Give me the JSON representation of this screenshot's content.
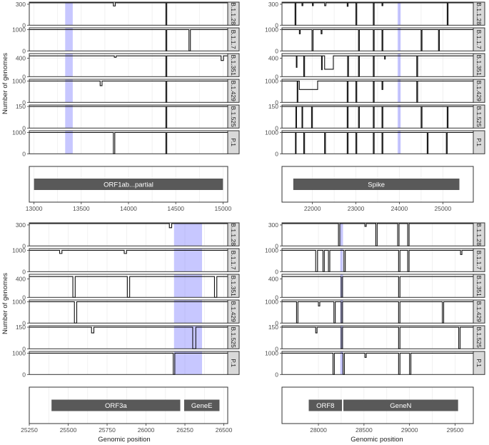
{
  "figure": {
    "y_axis_label": "Number of genomes",
    "x_axis_label": "Genomic position"
  },
  "chart_data": [
    {
      "type": "line",
      "panel": "top-left",
      "strips": [
        "B.1.1.28",
        "B.1.1.7",
        "B.1.351",
        "B.1.429",
        "B.1.525",
        "P.1"
      ],
      "xlim": [
        12950,
        15050
      ],
      "xticks": [
        13000,
        13500,
        14000,
        14500,
        15000
      ],
      "highlight": [
        13330,
        13410
      ],
      "series": [
        {
          "yticks": [
            0,
            300
          ],
          "ymax": 330,
          "base": 320,
          "dips": [
            {
              "x": 13840,
              "w": 20,
              "y": 275
            },
            {
              "x": 14395,
              "w": 10,
              "y": 0
            }
          ]
        },
        {
          "yticks": [
            0,
            1000
          ],
          "ymax": 1080,
          "base": 1000,
          "dips": [
            {
              "x": 14395,
              "w": 10,
              "y": 0
            },
            {
              "x": 14640,
              "w": 15,
              "y": 0
            }
          ]
        },
        {
          "yticks": [
            0,
            400
          ],
          "ymax": 500,
          "base": 450,
          "dips": [
            {
              "x": 13850,
              "w": 20,
              "y": 420
            },
            {
              "x": 14395,
              "w": 10,
              "y": 0
            },
            {
              "x": 14980,
              "w": 25,
              "y": 350
            }
          ]
        },
        {
          "yticks": [
            0,
            1000
          ],
          "ymax": 1080,
          "base": 1000,
          "dips": [
            {
              "x": 13700,
              "w": 20,
              "y": 780
            },
            {
              "x": 14395,
              "w": 10,
              "y": 0
            }
          ]
        },
        {
          "yticks": [
            0,
            150
          ],
          "ymax": 160,
          "base": 150,
          "dips": [
            {
              "x": 14395,
              "w": 10,
              "y": 0
            }
          ]
        },
        {
          "yticks": [
            0,
            1000
          ],
          "ymax": 1080,
          "base": 1000,
          "dips": [
            {
              "x": 13840,
              "w": 15,
              "y": 0
            },
            {
              "x": 14395,
              "w": 10,
              "y": 0
            }
          ]
        }
      ],
      "genes": [
        {
          "name": "ORF1ab...partial",
          "start": 13000,
          "end": 15000
        }
      ]
    },
    {
      "type": "line",
      "panel": "top-right",
      "strips": [
        "B.1.1.28",
        "B.1.1.7",
        "B.1.351",
        "B.1.429",
        "B.1.525",
        "P.1"
      ],
      "xlim": [
        21300,
        25700
      ],
      "xticks": [
        22000,
        23000,
        24000,
        25000
      ],
      "highlight": [
        23960,
        24030
      ],
      "series": [
        {
          "yticks": [
            0,
            300
          ],
          "ymax": 330,
          "base": 320,
          "dips": [
            {
              "x": 21600,
              "w": 20,
              "y": 0
            },
            {
              "x": 21760,
              "w": 20,
              "y": 280
            },
            {
              "x": 22000,
              "w": 20,
              "y": 280
            },
            {
              "x": 22280,
              "w": 30,
              "y": 280
            },
            {
              "x": 22800,
              "w": 20,
              "y": 270
            },
            {
              "x": 23000,
              "w": 20,
              "y": 0
            },
            {
              "x": 23400,
              "w": 20,
              "y": 0
            },
            {
              "x": 23600,
              "w": 20,
              "y": 280
            },
            {
              "x": 25100,
              "w": 20,
              "y": 0
            }
          ]
        },
        {
          "yticks": [
            0,
            1000
          ],
          "ymax": 1080,
          "base": 1000,
          "dips": [
            {
              "x": 21700,
              "w": 20,
              "y": 800
            },
            {
              "x": 21990,
              "w": 25,
              "y": 0
            },
            {
              "x": 22200,
              "w": 20,
              "y": 800
            },
            {
              "x": 23060,
              "w": 20,
              "y": 0
            },
            {
              "x": 23400,
              "w": 20,
              "y": 0
            },
            {
              "x": 23600,
              "w": 20,
              "y": 0
            },
            {
              "x": 24500,
              "w": 20,
              "y": 0
            },
            {
              "x": 24900,
              "w": 20,
              "y": 0
            }
          ]
        },
        {
          "yticks": [
            0,
            400
          ],
          "ymax": 500,
          "base": 450,
          "dips": [
            {
              "x": 21630,
              "w": 15,
              "y": 200
            },
            {
              "x": 21800,
              "w": 20,
              "y": 0
            },
            {
              "x": 22210,
              "w": 15,
              "y": 150
            },
            {
              "x": 22281,
              "w": 200,
              "y": 160
            },
            {
              "x": 22810,
              "w": 20,
              "y": 0
            },
            {
              "x": 23060,
              "w": 20,
              "y": 0
            },
            {
              "x": 23400,
              "w": 20,
              "y": 0
            },
            {
              "x": 23660,
              "w": 15,
              "y": 380
            },
            {
              "x": 24400,
              "w": 20,
              "y": 0
            }
          ]
        },
        {
          "yticks": [
            0,
            1000
          ],
          "ymax": 1080,
          "base": 1000,
          "dips": [
            {
              "x": 21650,
              "w": 15,
              "y": 0
            },
            {
              "x": 21700,
              "w": 420,
              "y": 600
            },
            {
              "x": 22800,
              "w": 20,
              "y": 0
            },
            {
              "x": 23000,
              "w": 20,
              "y": 0
            },
            {
              "x": 23400,
              "w": 20,
              "y": 0
            },
            {
              "x": 23600,
              "w": 20,
              "y": 600
            },
            {
              "x": 24400,
              "w": 20,
              "y": 0
            }
          ]
        },
        {
          "yticks": [
            0,
            150
          ],
          "ymax": 160,
          "base": 150,
          "dips": [
            {
              "x": 21620,
              "w": 15,
              "y": 0
            },
            {
              "x": 21760,
              "w": 15,
              "y": 0
            },
            {
              "x": 21980,
              "w": 20,
              "y": 0
            },
            {
              "x": 22800,
              "w": 20,
              "y": 0
            },
            {
              "x": 23060,
              "w": 20,
              "y": 0
            },
            {
              "x": 23400,
              "w": 20,
              "y": 0
            },
            {
              "x": 23600,
              "w": 20,
              "y": 0
            },
            {
              "x": 24500,
              "w": 20,
              "y": 0
            },
            {
              "x": 25100,
              "w": 20,
              "y": 0
            }
          ]
        },
        {
          "yticks": [
            0,
            1000
          ],
          "ymax": 1080,
          "base": 1000,
          "dips": [
            {
              "x": 21610,
              "w": 15,
              "y": 0
            },
            {
              "x": 21800,
              "w": 20,
              "y": 0
            },
            {
              "x": 22280,
              "w": 20,
              "y": 0
            },
            {
              "x": 22800,
              "w": 20,
              "y": 0
            },
            {
              "x": 23000,
              "w": 20,
              "y": 0
            },
            {
              "x": 23400,
              "w": 20,
              "y": 0
            },
            {
              "x": 23600,
              "w": 20,
              "y": 0
            },
            {
              "x": 24640,
              "w": 20,
              "y": 0
            },
            {
              "x": 25080,
              "w": 20,
              "y": 0
            }
          ]
        }
      ],
      "genes": [
        {
          "name": "Spike",
          "start": 21560,
          "end": 25380
        }
      ]
    },
    {
      "type": "line",
      "panel": "bottom-left",
      "strips": [
        "B.1.1.28",
        "B.1.1.7",
        "B.1.351",
        "B.1.429",
        "B.1.525",
        "P.1"
      ],
      "xlim": [
        25250,
        26525
      ],
      "xticks": [
        25250,
        25500,
        25750,
        26000,
        26250,
        26500
      ],
      "highlight": [
        26180,
        26360
      ],
      "series": [
        {
          "yticks": [
            0,
            300
          ],
          "ymax": 330,
          "base": 320,
          "dips": [
            {
              "x": 26150,
              "w": 15,
              "y": 260
            }
          ]
        },
        {
          "yticks": [
            0,
            1000
          ],
          "ymax": 1080,
          "base": 1000,
          "dips": [
            {
              "x": 25445,
              "w": 15,
              "y": 850
            },
            {
              "x": 25860,
              "w": 15,
              "y": 850
            }
          ]
        },
        {
          "yticks": [
            0,
            400
          ],
          "ymax": 500,
          "base": 450,
          "dips": [
            {
              "x": 25530,
              "w": 15,
              "y": 0
            },
            {
              "x": 25880,
              "w": 15,
              "y": 0
            },
            {
              "x": 26440,
              "w": 15,
              "y": 0
            }
          ]
        },
        {
          "yticks": [
            0,
            1000
          ],
          "ymax": 1080,
          "base": 1000,
          "dips": [
            {
              "x": 25540,
              "w": 15,
              "y": 0
            }
          ]
        },
        {
          "yticks": [
            0,
            150
          ],
          "ymax": 160,
          "base": 150,
          "dips": [
            {
              "x": 25650,
              "w": 15,
              "y": 110
            },
            {
              "x": 26300,
              "w": 20,
              "y": 0
            }
          ]
        },
        {
          "yticks": [
            0,
            1000
          ],
          "ymax": 1080,
          "base": 1000,
          "dips": [
            {
              "x": 26175,
              "w": 10,
              "y": 0
            }
          ]
        }
      ],
      "genes": [
        {
          "name": "ORF3a",
          "start": 25393,
          "end": 26220
        },
        {
          "name": "GeneE",
          "start": 26245,
          "end": 26472
        }
      ]
    },
    {
      "type": "line",
      "panel": "bottom-right",
      "strips": [
        "B.1.1.28",
        "B.1.1.7",
        "B.1.351",
        "B.1.429",
        "B.1.525",
        "P.1"
      ],
      "xlim": [
        27600,
        29700
      ],
      "xticks": [
        28000,
        28500,
        29000,
        29500
      ],
      "highlight": [
        28240,
        28270
      ],
      "series": [
        {
          "yticks": [
            0,
            300
          ],
          "ymax": 330,
          "base": 320,
          "dips": [
            {
              "x": 28220,
              "w": 15,
              "y": 0
            },
            {
              "x": 28510,
              "w": 15,
              "y": 280
            },
            {
              "x": 28630,
              "w": 15,
              "y": 0
            },
            {
              "x": 28870,
              "w": 15,
              "y": 0
            },
            {
              "x": 28980,
              "w": 15,
              "y": 0
            }
          ]
        },
        {
          "yticks": [
            0,
            1000
          ],
          "ymax": 1080,
          "base": 1000,
          "dips": [
            {
              "x": 27970,
              "w": 20,
              "y": 0
            },
            {
              "x": 28050,
              "w": 15,
              "y": 0
            },
            {
              "x": 28110,
              "w": 15,
              "y": 0
            },
            {
              "x": 28280,
              "w": 15,
              "y": 0
            },
            {
              "x": 28880,
              "w": 15,
              "y": 0
            },
            {
              "x": 28980,
              "w": 15,
              "y": 0
            },
            {
              "x": 29560,
              "w": 15,
              "y": 800
            }
          ]
        },
        {
          "yticks": [
            0,
            400
          ],
          "ymax": 500,
          "base": 450,
          "dips": [
            {
              "x": 28250,
              "w": 15,
              "y": 0
            },
            {
              "x": 28880,
              "w": 15,
              "y": 0
            }
          ]
        },
        {
          "yticks": [
            0,
            1000
          ],
          "ymax": 1080,
          "base": 1000,
          "dips": [
            {
              "x": 27760,
              "w": 15,
              "y": 0
            },
            {
              "x": 28000,
              "w": 15,
              "y": 800
            },
            {
              "x": 28170,
              "w": 15,
              "y": 0
            },
            {
              "x": 28250,
              "w": 15,
              "y": 0
            },
            {
              "x": 28880,
              "w": 15,
              "y": 0
            },
            {
              "x": 29360,
              "w": 15,
              "y": 0
            }
          ]
        },
        {
          "yticks": [
            0,
            150
          ],
          "ymax": 160,
          "base": 150,
          "dips": [
            {
              "x": 27970,
              "w": 15,
              "y": 110
            },
            {
              "x": 28250,
              "w": 15,
              "y": 0
            },
            {
              "x": 28880,
              "w": 15,
              "y": 0
            },
            {
              "x": 29540,
              "w": 15,
              "y": 0
            }
          ]
        },
        {
          "yticks": [
            0,
            1000
          ],
          "ymax": 1080,
          "base": 1000,
          "dips": [
            {
              "x": 28160,
              "w": 15,
              "y": 0
            },
            {
              "x": 28270,
              "w": 15,
              "y": 0
            },
            {
              "x": 28510,
              "w": 15,
              "y": 800
            },
            {
              "x": 28880,
              "w": 15,
              "y": 0
            },
            {
              "x": 29000,
              "w": 15,
              "y": 0
            }
          ]
        }
      ],
      "genes": [
        {
          "name": "ORF8",
          "start": 27894,
          "end": 28259
        },
        {
          "name": "GeneN",
          "start": 28274,
          "end": 29533
        }
      ]
    }
  ]
}
